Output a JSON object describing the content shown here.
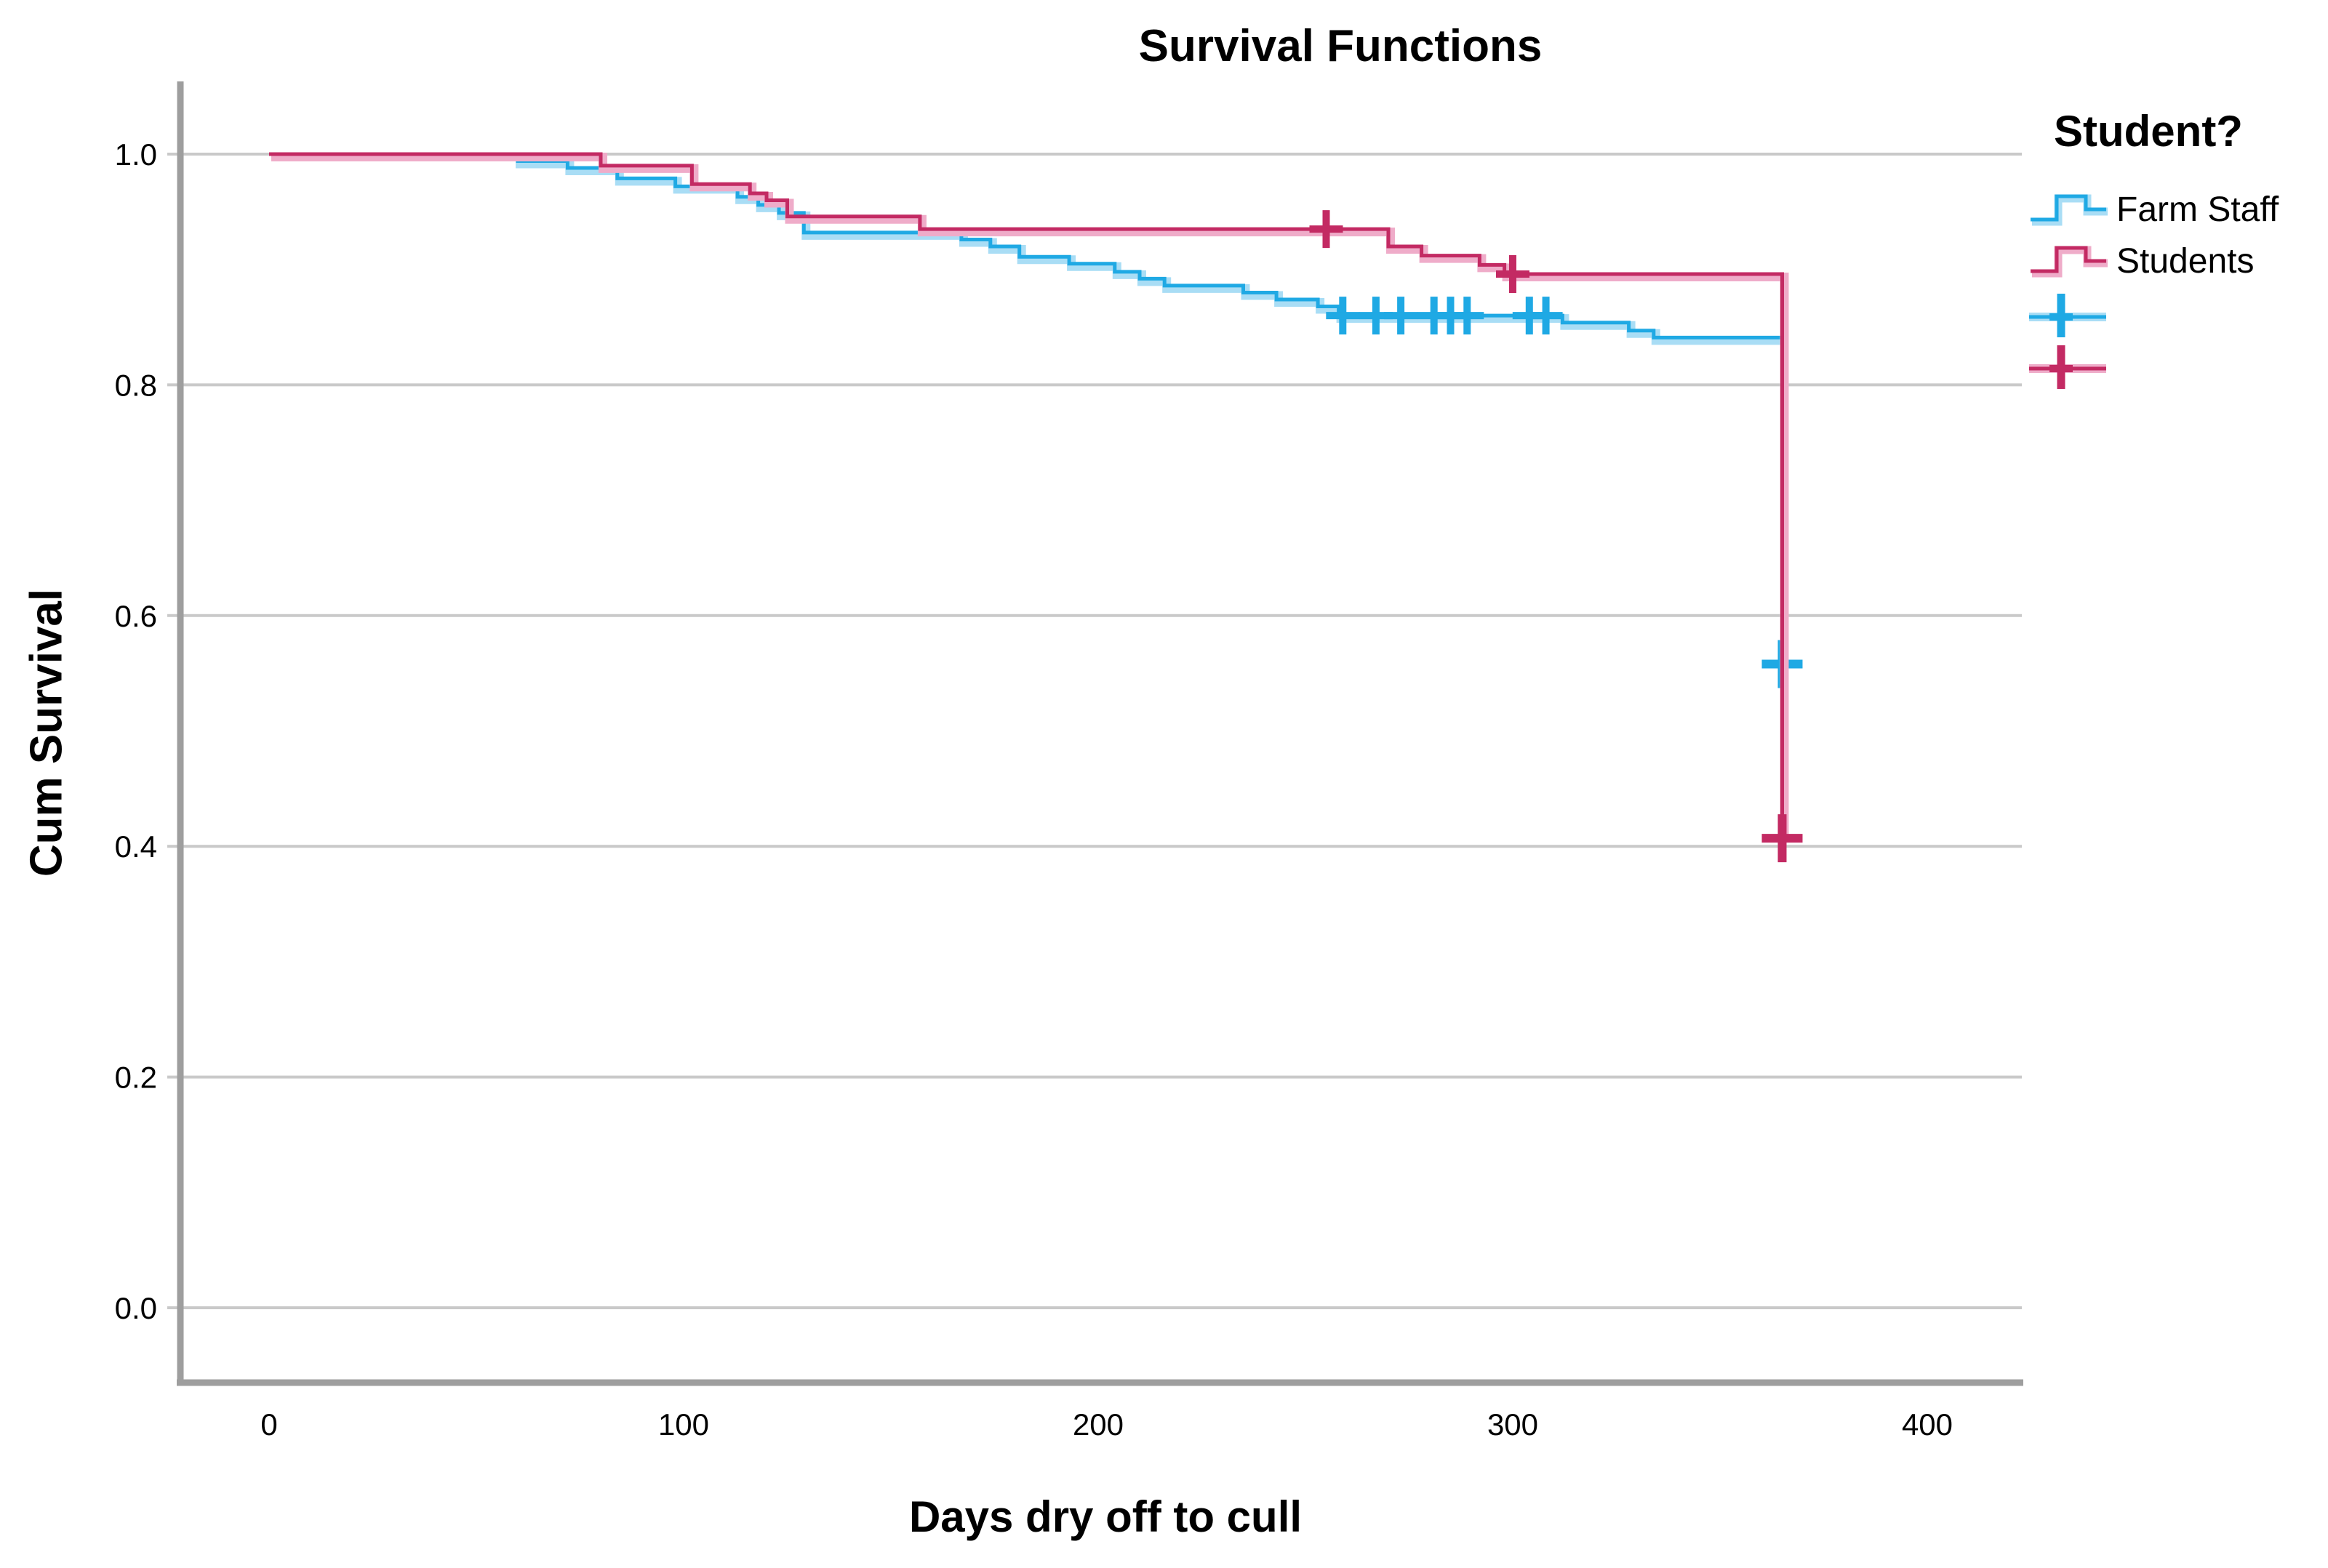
{
  "title": "Survival Functions",
  "legend": {
    "title": "Student?",
    "entries": [
      {
        "label": "Farm Staff",
        "type": "step",
        "color_key": "farm_staff"
      },
      {
        "label": "Students",
        "type": "step",
        "color_key": "students"
      },
      {
        "label": "",
        "type": "plus",
        "color_key": "farm_staff"
      },
      {
        "label": "",
        "type": "plus",
        "color_key": "students"
      }
    ]
  },
  "colors": {
    "farm_staff": "#1FA9E4",
    "farm_staff_halo": "#A9DDF5",
    "students": "#C32A63",
    "students_halo": "#EFACC9",
    "grid": "#C9C9C9",
    "axis": "#9E9E9E",
    "text": "#000000",
    "background": "#FFFFFF"
  },
  "chart_data": {
    "type": "line",
    "subtype": "kaplan-meier-step",
    "title": "Survival Functions",
    "xlabel": "Days dry off to cull",
    "ylabel": "Cum Survival",
    "xlim": [
      0,
      400
    ],
    "ylim": [
      0.0,
      1.0
    ],
    "grid": "horizontal",
    "legend_position": "right",
    "x_ticks": [
      {
        "v": 0,
        "label": "0"
      },
      {
        "v": 100,
        "label": "100"
      },
      {
        "v": 200,
        "label": "200"
      },
      {
        "v": 300,
        "label": "300"
      },
      {
        "v": 400,
        "label": "400"
      }
    ],
    "y_ticks": [
      {
        "v": 1.0,
        "label": "1.0"
      },
      {
        "v": 0.8,
        "label": "0.8"
      },
      {
        "v": 0.6,
        "label": "0.6"
      },
      {
        "v": 0.4,
        "label": "0.4"
      },
      {
        "v": 0.2,
        "label": "0.2"
      },
      {
        "v": 0.0,
        "label": "0.0"
      }
    ],
    "series": [
      {
        "name": "Farm Staff",
        "color_key": "farm_staff",
        "steps": [
          [
            0,
            1.0
          ],
          [
            60,
            0.994
          ],
          [
            72,
            0.988
          ],
          [
            84,
            0.979
          ],
          [
            98,
            0.972
          ],
          [
            113,
            0.963
          ],
          [
            118,
            0.956
          ],
          [
            123,
            0.949
          ],
          [
            129,
            0.932
          ],
          [
            167,
            0.926
          ],
          [
            174,
            0.92
          ],
          [
            181,
            0.911
          ],
          [
            193,
            0.905
          ],
          [
            204,
            0.898
          ],
          [
            210,
            0.892
          ],
          [
            216,
            0.886
          ],
          [
            235,
            0.88
          ],
          [
            243,
            0.874
          ],
          [
            253,
            0.868
          ],
          [
            258,
            0.86
          ],
          [
            312,
            0.854
          ],
          [
            328,
            0.847
          ],
          [
            334,
            0.841
          ],
          [
            365,
            0.558
          ]
        ],
        "censored": [
          [
            259,
            0.86
          ],
          [
            267,
            0.86
          ],
          [
            273,
            0.86
          ],
          [
            281,
            0.86
          ],
          [
            285,
            0.86
          ],
          [
            289,
            0.86
          ],
          [
            304,
            0.86
          ],
          [
            308,
            0.86
          ]
        ],
        "terminal_censored": [
          365,
          0.558
        ]
      },
      {
        "name": "Students",
        "color_key": "students",
        "steps": [
          [
            0,
            1.0
          ],
          [
            80,
            0.99
          ],
          [
            102,
            0.974
          ],
          [
            116,
            0.966
          ],
          [
            120,
            0.96
          ],
          [
            125,
            0.946
          ],
          [
            157,
            0.935
          ],
          [
            270,
            0.92
          ],
          [
            278,
            0.912
          ],
          [
            292,
            0.904
          ],
          [
            298,
            0.896
          ],
          [
            365,
            0.407
          ]
        ],
        "censored": [
          [
            255,
            0.935
          ],
          [
            300,
            0.896
          ]
        ],
        "terminal_censored": [
          365,
          0.407
        ]
      }
    ]
  }
}
